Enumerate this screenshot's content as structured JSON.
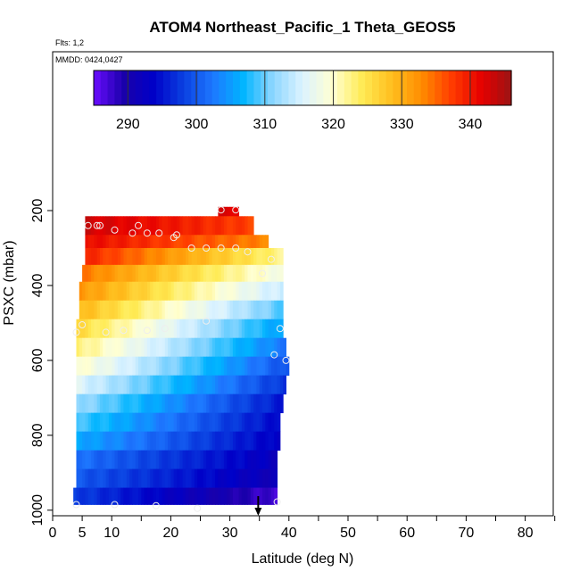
{
  "chart_data": {
    "type": "heatmap",
    "title": "ATOM4 Northeast_Pacific_1 Theta_GEOS5",
    "flights_label": "Flts: 1,2",
    "dates_label": "MMDD: 0424,0427",
    "xlabel": "Latitude (deg N)",
    "ylabel": "PSXC (mbar)",
    "xlim": [
      0,
      85
    ],
    "ylim": [
      1000,
      0
    ],
    "x_ticks": [
      0,
      5,
      10,
      20,
      30,
      40,
      50,
      60,
      70,
      80
    ],
    "x_minor_ticks": [
      15,
      25,
      35,
      45,
      55,
      65,
      75,
      85
    ],
    "y_ticks": [
      200,
      400,
      600,
      800,
      1000
    ],
    "colorbar": {
      "min": 285,
      "max": 346,
      "ticks": [
        290,
        300,
        310,
        320,
        330,
        340
      ],
      "colors": [
        "#6a0dff",
        "#1a00aa",
        "#0000c8",
        "#0a3fe0",
        "#1e78ff",
        "#00b4ff",
        "#8cd6ff",
        "#dcf3ff",
        "#ffffd2",
        "#ffeb55",
        "#ffbe1e",
        "#ff8c00",
        "#ff3c00",
        "#e60000",
        "#9b1414"
      ]
    },
    "heatmap": {
      "lat_step": 0.5,
      "note_rows": "pressure bands; values are potential temperature (K) at the west and east edges of each band",
      "rows": [
        {
          "p0": 190,
          "p1": 215,
          "lat0": 28,
          "lat1": 31.5,
          "v0": 342,
          "v1": 342
        },
        {
          "p0": 215,
          "p1": 265,
          "lat0": 5.5,
          "lat1": 34,
          "v0": 343,
          "v1": 337
        },
        {
          "p0": 265,
          "p1": 300,
          "lat0": 5.5,
          "lat1": 36.5,
          "v0": 341,
          "v1": 333
        },
        {
          "p0": 300,
          "p1": 345,
          "lat0": 5.5,
          "lat1": 39,
          "v0": 339,
          "v1": 322
        },
        {
          "p0": 345,
          "p1": 390,
          "lat0": 5,
          "lat1": 39,
          "v0": 334,
          "v1": 318
        },
        {
          "p0": 390,
          "p1": 440,
          "lat0": 4.5,
          "lat1": 39,
          "v0": 332,
          "v1": 314
        },
        {
          "p0": 440,
          "p1": 490,
          "lat0": 4.5,
          "lat1": 39,
          "v0": 329,
          "v1": 309
        },
        {
          "p0": 490,
          "p1": 540,
          "lat0": 4,
          "lat1": 39,
          "v0": 326,
          "v1": 305
        },
        {
          "p0": 540,
          "p1": 590,
          "lat0": 4,
          "lat1": 39.5,
          "v0": 323,
          "v1": 302
        },
        {
          "p0": 590,
          "p1": 640,
          "lat0": 4,
          "lat1": 40,
          "v0": 320,
          "v1": 299
        },
        {
          "p0": 640,
          "p1": 690,
          "lat0": 4,
          "lat1": 39.5,
          "v0": 316,
          "v1": 297
        },
        {
          "p0": 690,
          "p1": 740,
          "lat0": 4,
          "lat1": 39,
          "v0": 312,
          "v1": 295
        },
        {
          "p0": 740,
          "p1": 790,
          "lat0": 4,
          "lat1": 38.5,
          "v0": 309,
          "v1": 294
        },
        {
          "p0": 790,
          "p1": 840,
          "lat0": 4,
          "lat1": 38.5,
          "v0": 306,
          "v1": 293
        },
        {
          "p0": 840,
          "p1": 890,
          "lat0": 4,
          "lat1": 38,
          "v0": 302,
          "v1": 292
        },
        {
          "p0": 890,
          "p1": 940,
          "lat0": 4,
          "lat1": 38,
          "v0": 300,
          "v1": 291
        },
        {
          "p0": 940,
          "p1": 985,
          "lat0": 3.5,
          "lat1": 38,
          "v0": 298,
          "v1": 287
        }
      ]
    },
    "points": [
      {
        "lat": 28.5,
        "p": 198
      },
      {
        "lat": 31,
        "p": 198
      },
      {
        "lat": 6,
        "p": 240
      },
      {
        "lat": 7.5,
        "p": 240
      },
      {
        "lat": 8,
        "p": 240
      },
      {
        "lat": 14.5,
        "p": 240
      },
      {
        "lat": 13.5,
        "p": 260
      },
      {
        "lat": 10.5,
        "p": 252
      },
      {
        "lat": 16,
        "p": 260
      },
      {
        "lat": 18,
        "p": 260
      },
      {
        "lat": 21,
        "p": 265
      },
      {
        "lat": 20.5,
        "p": 272
      },
      {
        "lat": 23.5,
        "p": 300
      },
      {
        "lat": 26,
        "p": 300
      },
      {
        "lat": 28.5,
        "p": 300
      },
      {
        "lat": 31,
        "p": 300
      },
      {
        "lat": 33,
        "p": 310
      },
      {
        "lat": 37,
        "p": 330
      },
      {
        "lat": 35.5,
        "p": 368
      },
      {
        "lat": 5,
        "p": 505
      },
      {
        "lat": 4,
        "p": 525
      },
      {
        "lat": 9,
        "p": 525
      },
      {
        "lat": 12,
        "p": 520
      },
      {
        "lat": 16,
        "p": 520
      },
      {
        "lat": 19,
        "p": 515
      },
      {
        "lat": 26,
        "p": 495
      },
      {
        "lat": 38.5,
        "p": 515
      },
      {
        "lat": 37.5,
        "p": 585
      },
      {
        "lat": 39.5,
        "p": 600
      },
      {
        "lat": 4,
        "p": 985
      },
      {
        "lat": 10.5,
        "p": 985
      },
      {
        "lat": 17.5,
        "p": 988
      },
      {
        "lat": 24.5,
        "p": 995
      },
      {
        "lat": 38,
        "p": 978
      }
    ],
    "marker": {
      "lat": 34.8,
      "type": "arrow"
    }
  }
}
